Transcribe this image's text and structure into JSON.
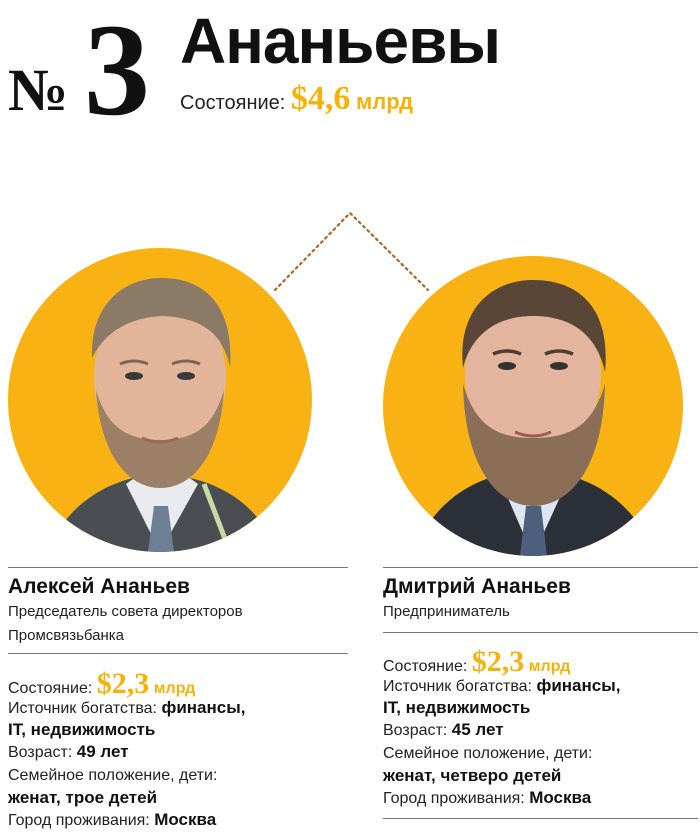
{
  "header": {
    "rank_symbol": "№",
    "rank_number": "3",
    "family_name": "Ананьевы",
    "total_label": "Состояние:",
    "total_currency": "$",
    "total_amount": "4,6",
    "total_unit": "млрд"
  },
  "colors": {
    "accent": "#f8b214",
    "money_text": "#f4b20a",
    "connector": "#b0632a",
    "rule": "#777777"
  },
  "people": [
    {
      "name": "Алексей Ананьев",
      "role_line1": "Председатель совета директоров",
      "role_line2": "Промсвязьбанка",
      "wealth_label": "Состояние:",
      "wealth_currency": "$",
      "wealth_amount": "2,3",
      "wealth_unit": "млрд",
      "source_label": "Источник богатства:",
      "source_value_1": "финансы,",
      "source_value_2": "IT, недвижимость",
      "age_label": "Возраст:",
      "age_value": "49 лет",
      "family_label": "Семейное положение, дети:",
      "family_value": "женат, трое детей",
      "city_label": "Город проживания:",
      "city_value": "Москва"
    },
    {
      "name": "Дмитрий Ананьев",
      "role_line1": "Предприниматель",
      "wealth_label": "Состояние:",
      "wealth_currency": "$",
      "wealth_amount": "2,3",
      "wealth_unit": "млрд",
      "source_label": "Источник богатства:",
      "source_value_1": "финансы,",
      "source_value_2": "IT, недвижимость",
      "age_label": "Возраст:",
      "age_value": "45 лет",
      "family_label": "Семейное положение, дети:",
      "family_value": "женат, четверо детей",
      "city_label": "Город проживания:",
      "city_value": "Москва"
    }
  ]
}
